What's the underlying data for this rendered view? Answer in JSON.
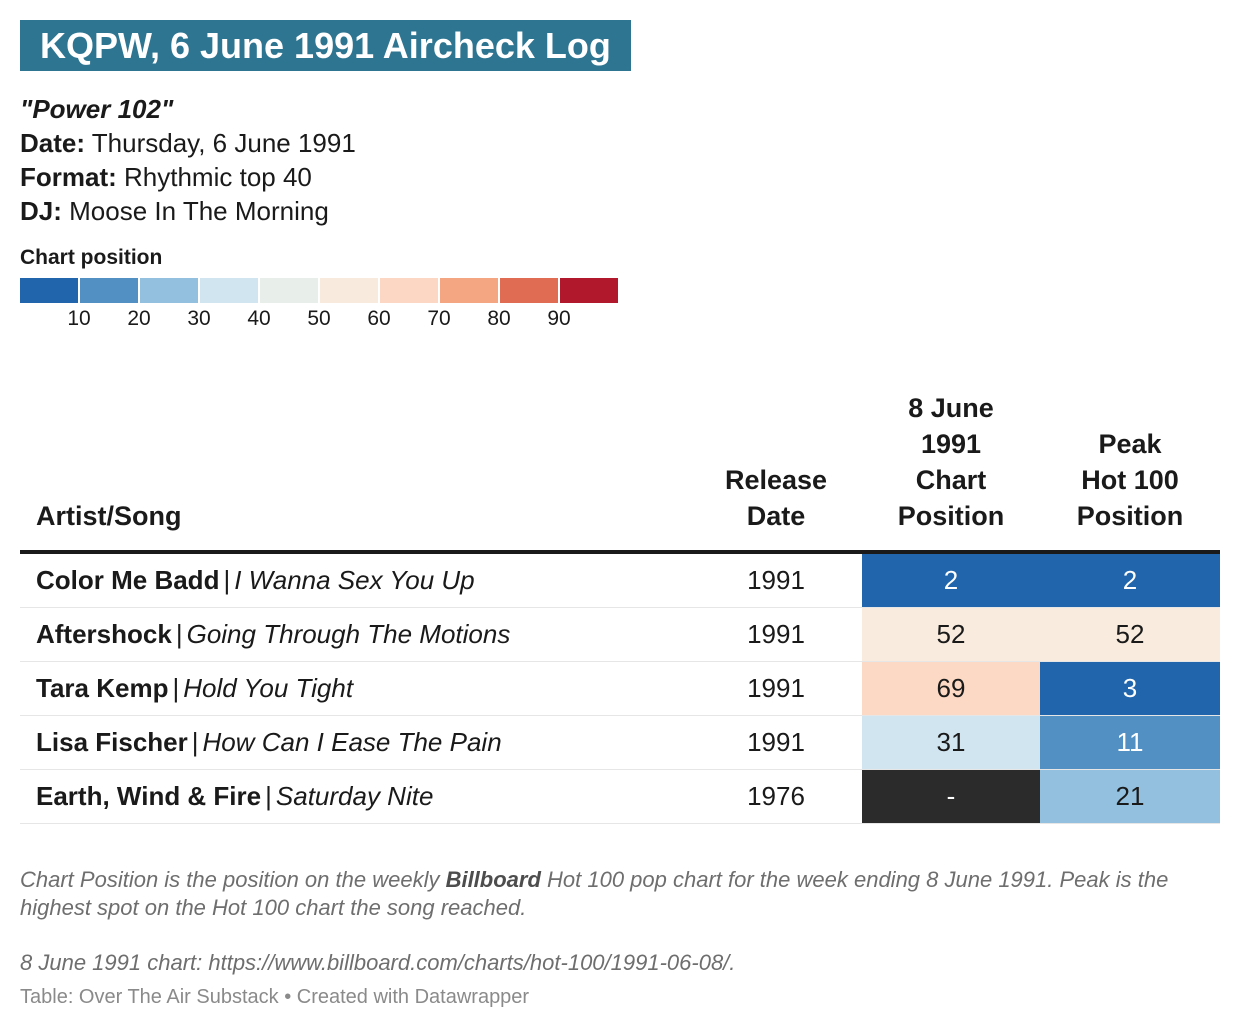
{
  "title": "KQPW, 6 June 1991 Aircheck Log",
  "meta": {
    "station_name": "\"Power 102\"",
    "date_label": "Date:",
    "date_value": "Thursday, 6 June 1991",
    "format_label": "Format:",
    "format_value": "Rhythmic top 40",
    "dj_label": "DJ:",
    "dj_value": "Moose In The Morning"
  },
  "legend": {
    "title": "Chart position",
    "colors": [
      "#2166ac",
      "#5290c4",
      "#92c0de",
      "#d1e5f0",
      "#e8eee9",
      "#f8ebde",
      "#fcd8c4",
      "#f4a582",
      "#e06c54",
      "#b2182b"
    ],
    "ticks": [
      "10",
      "20",
      "30",
      "40",
      "50",
      "60",
      "70",
      "80",
      "90"
    ]
  },
  "table": {
    "headers": {
      "artist_song": "Artist/Song",
      "release_line1": "Release",
      "release_line2": "Date",
      "chart_line1": "8 June",
      "chart_line2": "1991",
      "chart_line3": "Chart",
      "chart_line4": "Position",
      "peak_line1": "Peak",
      "peak_line2": "Hot 100",
      "peak_line3": "Position"
    },
    "separator": "|"
  },
  "chart_data": {
    "type": "table",
    "columns": [
      "Artist/Song",
      "Release Date",
      "8 June 1991 Chart Position",
      "Peak Hot 100 Position"
    ],
    "rows": [
      {
        "artist": "Color Me Badd",
        "song": "I Wanna Sex You Up",
        "release": "1991",
        "chart": "2",
        "peak": "2",
        "chart_bg": "#2166ac",
        "chart_fg": "#ffffff",
        "peak_bg": "#2166ac",
        "peak_fg": "#ffffff"
      },
      {
        "artist": "Aftershock",
        "song": "Going Through The Motions",
        "release": "1991",
        "chart": "52",
        "peak": "52",
        "chart_bg": "#f9ebdd",
        "chart_fg": "#1a1a1a",
        "peak_bg": "#f9ebdd",
        "peak_fg": "#1a1a1a"
      },
      {
        "artist": "Tara Kemp",
        "song": "Hold You Tight",
        "release": "1991",
        "chart": "69",
        "peak": "3",
        "chart_bg": "#fcd9c4",
        "chart_fg": "#1a1a1a",
        "peak_bg": "#2166ac",
        "peak_fg": "#ffffff"
      },
      {
        "artist": "Lisa Fischer",
        "song": "How Can I Ease The Pain",
        "release": "1991",
        "chart": "31",
        "peak": "11",
        "chart_bg": "#d1e5f0",
        "chart_fg": "#1a1a1a",
        "peak_bg": "#5290c4",
        "peak_fg": "#ffffff"
      },
      {
        "artist": "Earth, Wind & Fire",
        "song": "Saturday Nite",
        "release": "1976",
        "chart": "-",
        "peak": "21",
        "chart_bg": "#2b2b2b",
        "chart_fg": "#ffffff",
        "peak_bg": "#92c0de",
        "peak_fg": "#1a1a1a"
      }
    ]
  },
  "footnote": {
    "part1": "Chart Position is the position on the weekly ",
    "bold": "Billboard",
    "part2": " Hot 100 pop chart for the week ending 8 June 1991. Peak is the highest spot on the Hot 100 chart the song reached."
  },
  "source": "8 June 1991 chart: https://www.billboard.com/charts/hot-100/1991-06-08/.",
  "credit": "Table: Over The Air Substack • Created with Datawrapper"
}
